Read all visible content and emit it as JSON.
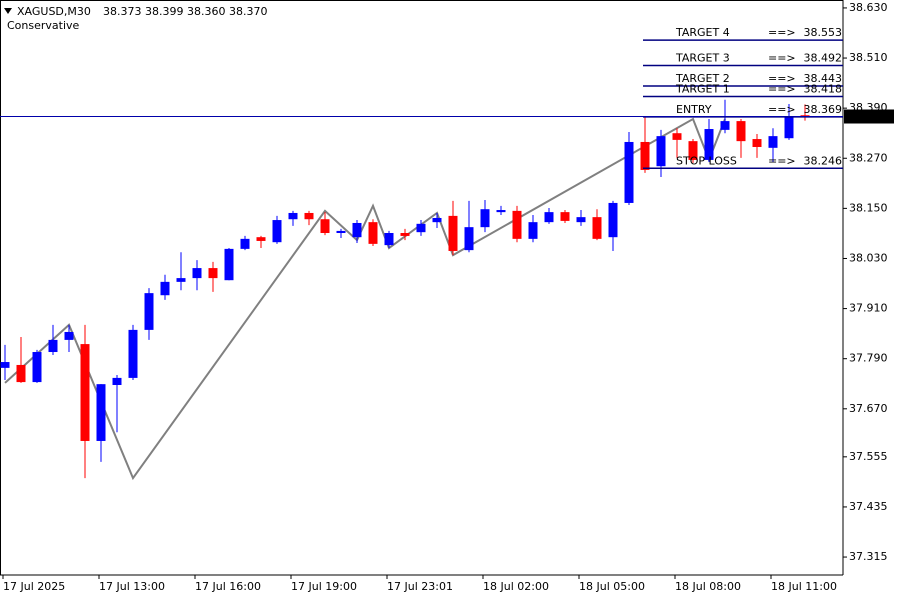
{
  "chart_data": {
    "type": "candlestick",
    "symbol": "XAGUSD,M30",
    "last_labels": [
      "38.373",
      "38.399",
      "38.360",
      "38.370"
    ],
    "subtitle": "Conservative",
    "categories": [
      "17 Jul 2025",
      null,
      null,
      null,
      null,
      null,
      "17 Jul 13:00",
      null,
      null,
      null,
      null,
      null,
      "17 Jul 16:00",
      null,
      null,
      null,
      null,
      null,
      "17 Jul 19:00",
      null,
      null,
      null,
      null,
      null,
      "17 Jul 23:01",
      null,
      null,
      null,
      null,
      null,
      "18 Jul 02:00",
      null,
      null,
      null,
      null,
      null,
      "18 Jul 05:00",
      null,
      null,
      null,
      null,
      null,
      "18 Jul 08:00",
      null,
      null,
      null,
      null,
      null,
      "18 Jul 11:00",
      null,
      null
    ],
    "open": [
      37.768,
      37.775,
      37.734,
      37.806,
      37.835,
      37.825,
      37.593,
      37.727,
      37.744,
      37.859,
      37.942,
      37.974,
      37.983,
      38.007,
      37.978,
      38.053,
      38.081,
      38.069,
      38.124,
      38.139,
      38.124,
      38.091,
      38.081,
      38.117,
      38.062,
      38.091,
      38.093,
      38.117,
      38.132,
      38.05,
      38.105,
      38.141,
      38.144,
      38.077,
      38.117,
      38.141,
      38.117,
      38.129,
      38.081,
      38.163,
      38.309,
      38.251,
      38.33,
      38.311,
      38.266,
      38.338,
      38.359,
      38.316,
      38.295,
      38.318,
      38.373
    ],
    "high": [
      37.823,
      37.842,
      37.811,
      37.871,
      37.871,
      37.871,
      37.729,
      37.751,
      37.871,
      37.959,
      37.991,
      38.045,
      38.026,
      38.022,
      38.055,
      38.084,
      38.084,
      38.132,
      38.144,
      38.144,
      38.141,
      38.101,
      38.122,
      38.124,
      38.096,
      38.101,
      38.122,
      38.139,
      38.168,
      38.168,
      38.17,
      38.156,
      38.156,
      38.134,
      38.151,
      38.146,
      38.146,
      38.148,
      38.168,
      38.333,
      38.369,
      38.338,
      38.342,
      38.316,
      38.364,
      38.41,
      38.364,
      38.328,
      38.342,
      38.4,
      38.399
    ],
    "low": [
      37.739,
      37.732,
      37.732,
      37.799,
      37.806,
      37.504,
      37.543,
      37.614,
      37.739,
      37.835,
      37.931,
      37.954,
      37.954,
      37.95,
      37.978,
      38.05,
      38.055,
      38.065,
      38.108,
      38.11,
      38.086,
      38.079,
      38.067,
      38.06,
      38.055,
      38.074,
      38.084,
      38.103,
      38.038,
      38.045,
      38.093,
      38.134,
      38.069,
      38.069,
      38.113,
      38.115,
      38.108,
      38.074,
      38.048,
      38.158,
      38.235,
      38.225,
      38.271,
      38.259,
      38.261,
      38.33,
      38.271,
      38.271,
      38.261,
      38.314,
      38.36
    ],
    "close": [
      37.782,
      37.734,
      37.806,
      37.835,
      37.854,
      37.593,
      37.729,
      37.744,
      37.859,
      37.947,
      37.974,
      37.983,
      38.007,
      37.983,
      38.053,
      38.077,
      38.072,
      38.122,
      38.139,
      38.124,
      38.091,
      38.096,
      38.115,
      38.065,
      38.091,
      38.084,
      38.113,
      38.127,
      38.048,
      38.105,
      38.148,
      38.146,
      38.077,
      38.117,
      38.141,
      38.12,
      38.129,
      38.077,
      38.163,
      38.309,
      38.242,
      38.323,
      38.314,
      38.266,
      38.34,
      38.359,
      38.311,
      38.297,
      38.323,
      38.369,
      38.37
    ],
    "up_color": "#0000ff",
    "down_color": "#ff0000",
    "ylim": [
      37.272,
      38.649
    ],
    "yticks": [
      {
        "value": 38.63,
        "label": "38.630"
      },
      {
        "value": 38.51,
        "label": "38.510"
      },
      {
        "value": 38.39,
        "label": "38.390"
      },
      {
        "value": 38.27,
        "label": "38.270"
      },
      {
        "value": 38.15,
        "label": "38.150"
      },
      {
        "value": 38.03,
        "label": "38.030"
      },
      {
        "value": 37.91,
        "label": "37.910"
      },
      {
        "value": 37.79,
        "label": "37.790"
      },
      {
        "value": 37.67,
        "label": "37.670"
      },
      37.555,
      37.435,
      37.315
    ],
    "zigzag": {
      "color": "#808080",
      "x": [
        0,
        4,
        8,
        20,
        22,
        23,
        24,
        27,
        28,
        43,
        44,
        45
      ],
      "values": [
        37.732,
        37.871,
        37.504,
        38.144,
        38.074,
        38.156,
        38.055,
        38.139,
        38.038,
        38.364,
        38.266,
        38.364
      ]
    },
    "levels": [
      {
        "name": "TARGET 4",
        "value": 38.553
      },
      {
        "name": "TARGET 3",
        "value": 38.492
      },
      {
        "name": "TARGET 2",
        "value": 38.443
      },
      {
        "name": "TARGET 1",
        "value": 38.418
      },
      {
        "name": "ENTRY",
        "value": 38.369
      },
      {
        "name": "STOP LOSS",
        "value": 38.246
      }
    ],
    "level_arrow": "==>",
    "level_color": "#000080",
    "price_line_color": "#0000aa"
  }
}
